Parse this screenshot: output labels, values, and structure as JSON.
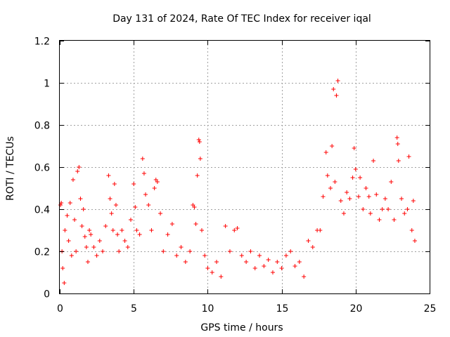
{
  "chart_data": {
    "type": "scatter",
    "title": "Day 131 of 2024, Rate Of TEC Index for receiver iqal",
    "xlabel": "GPS time / hours",
    "ylabel": "ROTI / TECUs",
    "xlim": [
      0,
      25
    ],
    "ylim": [
      0,
      1.2
    ],
    "xticks": [
      0,
      5,
      10,
      15,
      20,
      25
    ],
    "xtick_labels": [
      "0",
      "5",
      "10",
      "15",
      "20",
      "25"
    ],
    "yticks": [
      0,
      0.2,
      0.4,
      0.6,
      0.8,
      1.0,
      1.2
    ],
    "ytick_labels": [
      "0",
      "0.2",
      "0.4",
      "0.6",
      "0.8",
      "1",
      "1.2"
    ],
    "grid": true,
    "marker": "+",
    "color": "#ff0000",
    "series": [
      {
        "name": "ROTI",
        "points": [
          [
            0.05,
            0.42
          ],
          [
            0.1,
            0.43
          ],
          [
            0.15,
            0.2
          ],
          [
            0.2,
            0.12
          ],
          [
            0.3,
            0.05
          ],
          [
            0.35,
            0.3
          ],
          [
            0.5,
            0.37
          ],
          [
            0.6,
            0.25
          ],
          [
            0.7,
            0.43
          ],
          [
            0.8,
            0.18
          ],
          [
            0.9,
            0.54
          ],
          [
            1.0,
            0.35
          ],
          [
            1.1,
            0.2
          ],
          [
            1.2,
            0.58
          ],
          [
            1.3,
            0.6
          ],
          [
            1.4,
            0.45
          ],
          [
            1.5,
            0.32
          ],
          [
            1.6,
            0.4
          ],
          [
            1.7,
            0.27
          ],
          [
            1.8,
            0.22
          ],
          [
            1.9,
            0.15
          ],
          [
            2.0,
            0.3
          ],
          [
            2.1,
            0.28
          ],
          [
            2.3,
            0.22
          ],
          [
            2.5,
            0.18
          ],
          [
            2.7,
            0.25
          ],
          [
            2.9,
            0.2
          ],
          [
            3.1,
            0.32
          ],
          [
            3.3,
            0.56
          ],
          [
            3.4,
            0.45
          ],
          [
            3.5,
            0.38
          ],
          [
            3.6,
            0.3
          ],
          [
            3.7,
            0.52
          ],
          [
            3.8,
            0.42
          ],
          [
            3.9,
            0.28
          ],
          [
            4.0,
            0.2
          ],
          [
            4.2,
            0.3
          ],
          [
            4.4,
            0.25
          ],
          [
            4.6,
            0.22
          ],
          [
            4.8,
            0.35
          ],
          [
            5.0,
            0.52
          ],
          [
            5.1,
            0.41
          ],
          [
            5.2,
            0.3
          ],
          [
            5.4,
            0.28
          ],
          [
            5.6,
            0.64
          ],
          [
            5.7,
            0.57
          ],
          [
            5.8,
            0.47
          ],
          [
            6.0,
            0.42
          ],
          [
            6.2,
            0.3
          ],
          [
            6.4,
            0.5
          ],
          [
            6.5,
            0.54
          ],
          [
            6.6,
            0.53
          ],
          [
            6.8,
            0.38
          ],
          [
            7.0,
            0.2
          ],
          [
            7.3,
            0.28
          ],
          [
            7.6,
            0.33
          ],
          [
            7.9,
            0.18
          ],
          [
            8.2,
            0.22
          ],
          [
            8.5,
            0.15
          ],
          [
            8.8,
            0.2
          ],
          [
            9.0,
            0.42
          ],
          [
            9.1,
            0.41
          ],
          [
            9.2,
            0.33
          ],
          [
            9.3,
            0.56
          ],
          [
            9.4,
            0.73
          ],
          [
            9.45,
            0.72
          ],
          [
            9.5,
            0.64
          ],
          [
            9.6,
            0.3
          ],
          [
            9.8,
            0.18
          ],
          [
            10.0,
            0.12
          ],
          [
            10.3,
            0.1
          ],
          [
            10.6,
            0.15
          ],
          [
            10.9,
            0.08
          ],
          [
            11.2,
            0.32
          ],
          [
            11.5,
            0.2
          ],
          [
            11.8,
            0.3
          ],
          [
            12.0,
            0.31
          ],
          [
            12.3,
            0.18
          ],
          [
            12.6,
            0.15
          ],
          [
            12.9,
            0.2
          ],
          [
            13.2,
            0.12
          ],
          [
            13.5,
            0.18
          ],
          [
            13.8,
            0.13
          ],
          [
            14.1,
            0.16
          ],
          [
            14.4,
            0.1
          ],
          [
            14.7,
            0.15
          ],
          [
            15.0,
            0.12
          ],
          [
            15.3,
            0.18
          ],
          [
            15.6,
            0.2
          ],
          [
            15.9,
            0.13
          ],
          [
            16.2,
            0.15
          ],
          [
            16.5,
            0.08
          ],
          [
            16.8,
            0.25
          ],
          [
            17.1,
            0.22
          ],
          [
            17.4,
            0.3
          ],
          [
            17.6,
            0.3
          ],
          [
            17.8,
            0.46
          ],
          [
            18.0,
            0.67
          ],
          [
            18.1,
            0.56
          ],
          [
            18.3,
            0.5
          ],
          [
            18.4,
            0.7
          ],
          [
            18.5,
            0.97
          ],
          [
            18.6,
            0.53
          ],
          [
            18.7,
            0.94
          ],
          [
            18.8,
            1.01
          ],
          [
            19.0,
            0.44
          ],
          [
            19.2,
            0.38
          ],
          [
            19.4,
            0.48
          ],
          [
            19.6,
            0.45
          ],
          [
            19.8,
            0.55
          ],
          [
            19.9,
            0.69
          ],
          [
            20.0,
            0.59
          ],
          [
            20.2,
            0.46
          ],
          [
            20.3,
            0.55
          ],
          [
            20.5,
            0.4
          ],
          [
            20.7,
            0.5
          ],
          [
            20.9,
            0.46
          ],
          [
            21.0,
            0.38
          ],
          [
            21.2,
            0.63
          ],
          [
            21.4,
            0.47
          ],
          [
            21.6,
            0.35
          ],
          [
            21.8,
            0.4
          ],
          [
            22.0,
            0.45
          ],
          [
            22.2,
            0.4
          ],
          [
            22.4,
            0.53
          ],
          [
            22.6,
            0.35
          ],
          [
            22.8,
            0.74
          ],
          [
            22.85,
            0.71
          ],
          [
            22.9,
            0.63
          ],
          [
            23.1,
            0.45
          ],
          [
            23.3,
            0.38
          ],
          [
            23.5,
            0.4
          ],
          [
            23.6,
            0.65
          ],
          [
            23.8,
            0.3
          ],
          [
            23.9,
            0.44
          ],
          [
            24.0,
            0.25
          ]
        ]
      }
    ]
  }
}
